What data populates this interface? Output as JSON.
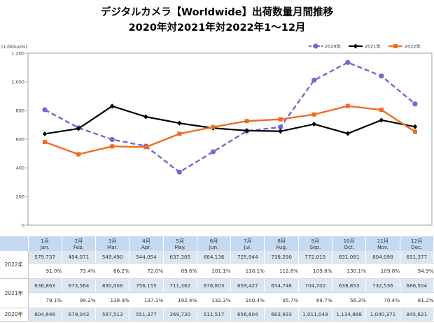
{
  "chart_data": {
    "type": "line",
    "title": "デジタルカメラ【Worldwide】出荷数量月間推移",
    "subtitle": "2020年対2021年対2022年1～12月",
    "ylabel": "(1,000units)",
    "categories": [
      "Jan.",
      "Feb.",
      "Mar.",
      "Apr.",
      "May.",
      "Jun.",
      "Jul.",
      "Aug.",
      "Sep.",
      "Oct.",
      "Nov.",
      "Dec."
    ],
    "categories_ja": [
      "1月",
      "2月",
      "3月",
      "4月",
      "5月",
      "6月",
      "7月",
      "8月",
      "9月",
      "10月",
      "11月",
      "12月"
    ],
    "ylim": [
      0,
      1200
    ],
    "yticks": [
      0,
      200,
      400,
      600,
      800,
      1000,
      1200
    ],
    "ytick_labels": [
      "0",
      "200",
      "400",
      "600",
      "800",
      "1,000",
      "1,200"
    ],
    "grid": false,
    "legend": "top-right",
    "series": [
      {
        "name": "2020年",
        "color": "#6b6bd3",
        "values": [
          804.646,
          679.043,
          597.513,
          551.377,
          369.73,
          511.517,
          656.604,
          683.933,
          1011.049,
          1134.888,
          1040.371,
          845.621
        ]
      },
      {
        "name": "2021年",
        "color": "#000000",
        "values": [
          636.863,
          673.564,
          830.006,
          756.155,
          711.362,
          676.803,
          659.427,
          654.746,
          704.702,
          638.853,
          732.536,
          686.504
        ]
      },
      {
        "name": "2022年",
        "color": "#f26c1f",
        "values": [
          579.737,
          494.071,
          549.49,
          544.054,
          637.305,
          684.136,
          725.944,
          738.29,
          772.015,
          831.081,
          804.098,
          651.377
        ]
      }
    ]
  },
  "table": {
    "y2022": {
      "values": [
        "579,737",
        "494,071",
        "549,490",
        "544,054",
        "637,305",
        "684,136",
        "725,944",
        "738,290",
        "772,015",
        "831,081",
        "804,098",
        "651,377"
      ],
      "yoy": [
        "91.0%",
        "73.4%",
        "66.2%",
        "72.0%",
        "89.6%",
        "101.1%",
        "110.1%",
        "112.8%",
        "109.6%",
        "130.1%",
        "109.8%",
        "94.9%"
      ]
    },
    "y2021": {
      "values": [
        "636,863",
        "673,564",
        "830,006",
        "756,155",
        "711,362",
        "676,803",
        "659,427",
        "654,746",
        "704,702",
        "638,853",
        "732,536",
        "686,504"
      ],
      "yoy": [
        "79.1%",
        "99.2%",
        "138.9%",
        "137.1%",
        "192.4%",
        "132.3%",
        "100.4%",
        "95.7%",
        "69.7%",
        "56.3%",
        "70.4%",
        "81.2%"
      ]
    },
    "y2020": {
      "values": [
        "804,646",
        "679,043",
        "597,513",
        "551,377",
        "369,730",
        "511,517",
        "656,604",
        "683,933",
        "1,011,049",
        "1,134,888",
        "1,040,371",
        "845,621"
      ]
    }
  }
}
